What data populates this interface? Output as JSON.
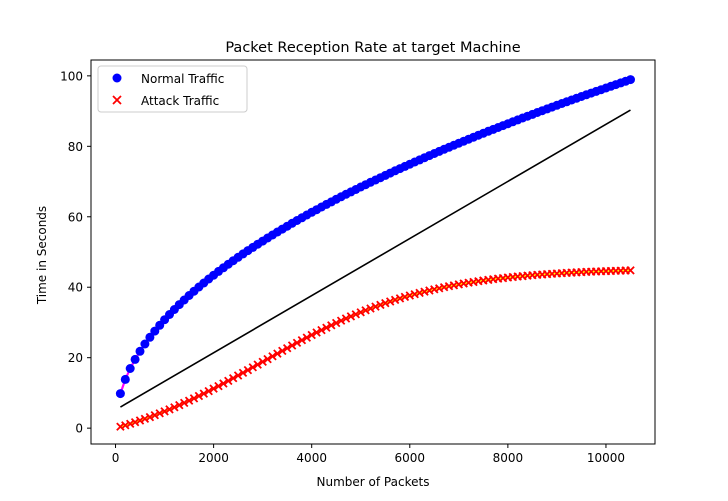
{
  "chart_data": {
    "type": "scatter",
    "title": "Packet Reception Rate at target Machine",
    "xlabel": "Number of Packets",
    "ylabel": "Time in Seconds",
    "xlim": [
      -500,
      11000
    ],
    "ylim": [
      -4.5,
      104.5
    ],
    "xticks": [
      0,
      2000,
      4000,
      6000,
      8000,
      10000
    ],
    "yticks": [
      0,
      20,
      40,
      60,
      80,
      100
    ],
    "xtick_labels": [
      "0",
      "2000",
      "4000",
      "6000",
      "8000",
      "10000"
    ],
    "ytick_labels": [
      "0",
      "20",
      "40",
      "60",
      "80",
      "100"
    ],
    "legend_position": "upper-left",
    "grid": false,
    "series": [
      {
        "name": "Normal Traffic",
        "marker": "circle",
        "color": "#0000ff",
        "trail_color": "#ff00ff",
        "x_start": 100,
        "x_end": 10500,
        "count": 105,
        "model": "a*x^b",
        "params": [
          0.9963,
          0.4966
        ],
        "anchors": [
          [
            100,
            10
          ],
          [
            200,
            18
          ],
          [
            300,
            23
          ],
          [
            400,
            28
          ],
          [
            500,
            31
          ],
          [
            1000,
            41.5
          ],
          [
            2000,
            51.5
          ],
          [
            3000,
            58
          ],
          [
            4000,
            65
          ],
          [
            6000,
            76
          ],
          [
            8000,
            87
          ],
          [
            10500,
            99.5
          ]
        ]
      },
      {
        "name": "Attack Traffic",
        "marker": "x",
        "color": "#ff0000",
        "trail_color": "#ffff00",
        "x_start": 100,
        "x_end": 10500,
        "count": 105,
        "model": "logistic",
        "params": [
          53.2,
          3000,
          1700
        ],
        "anchors": [
          [
            100,
            1
          ],
          [
            1000,
            10
          ],
          [
            2000,
            17
          ],
          [
            3000,
            26
          ],
          [
            4000,
            32
          ],
          [
            6000,
            40
          ],
          [
            8000,
            45.5
          ],
          [
            10500,
            50.5
          ]
        ]
      }
    ],
    "reference_line": {
      "color": "#000000",
      "x": [
        100,
        10500
      ],
      "y": [
        6,
        90.3
      ]
    }
  }
}
